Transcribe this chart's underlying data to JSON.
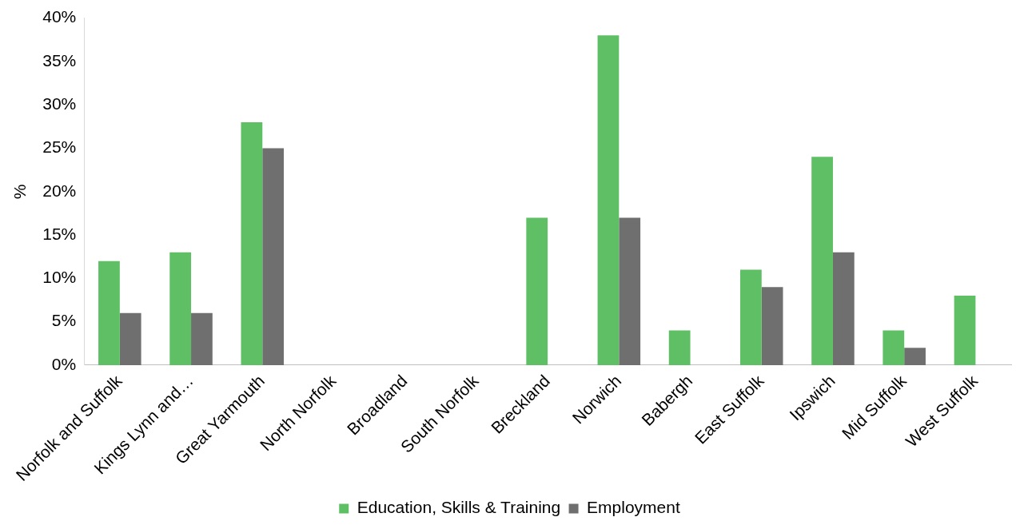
{
  "chart_data": {
    "type": "bar",
    "ylabel": "%",
    "categories": [
      "Norfolk and Suffolk",
      "Kings Lynn and…",
      "Great Yarmouth",
      "North Norfolk",
      "Broadland",
      "South Norfolk",
      "Breckland",
      "Norwich",
      "Babergh",
      "East Suffolk",
      "Ipswich",
      "Mid Suffolk",
      "West Suffolk"
    ],
    "series": [
      {
        "name": "Education, Skills & Training",
        "color": "#5fbf65",
        "values": [
          12,
          13,
          28,
          0,
          0,
          0,
          17,
          38,
          4,
          11,
          24,
          4,
          8
        ]
      },
      {
        "name": "Employment",
        "color": "#6f6f6f",
        "values": [
          6,
          6,
          25,
          0,
          0,
          0,
          0,
          17,
          0,
          9,
          13,
          2,
          0
        ]
      }
    ],
    "ylim": [
      0,
      40
    ],
    "yticks": [
      {
        "value": 0,
        "label": "0%"
      },
      {
        "value": 5,
        "label": "5%"
      },
      {
        "value": 10,
        "label": "10%"
      },
      {
        "value": 15,
        "label": "15%"
      },
      {
        "value": 20,
        "label": "20%"
      },
      {
        "value": 25,
        "label": "25%"
      },
      {
        "value": 30,
        "label": "30%"
      },
      {
        "value": 35,
        "label": "35%"
      },
      {
        "value": 40,
        "label": "40%"
      }
    ],
    "grid": false,
    "legend": "bottom"
  }
}
